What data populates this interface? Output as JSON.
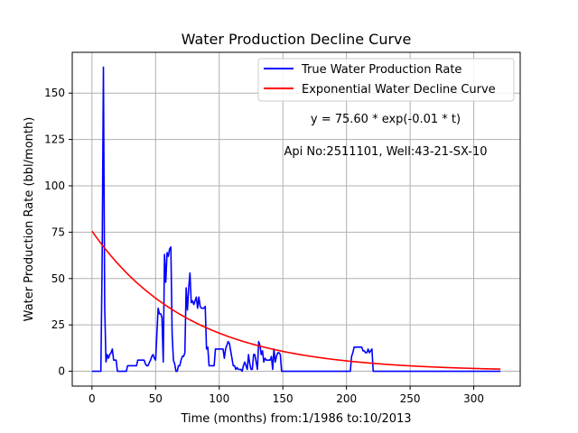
{
  "chart_data": {
    "type": "line",
    "title": "Water Production Decline Curve",
    "xlabel": "Time (months) from:1/1986 to:10/2013",
    "ylabel": "Water Production Rate (bbl/month)",
    "xlim": [
      -15.5,
      336.5
    ],
    "ylim": [
      -8,
      172
    ],
    "xticks": [
      0,
      50,
      100,
      150,
      200,
      250,
      300
    ],
    "yticks": [
      0,
      25,
      50,
      75,
      100,
      125,
      150
    ],
    "grid": true,
    "legend_position": "top-right",
    "annotations": [
      "y = 75.60 * exp(-0.01 * t)",
      "Api No:2511101, Well:43-21-SX-10"
    ],
    "series": [
      {
        "name": "True Water Production Rate",
        "color": "#0000ff",
        "points": [
          [
            0,
            0
          ],
          [
            7,
            0
          ],
          [
            8,
            60
          ],
          [
            9,
            164
          ],
          [
            10,
            35
          ],
          [
            11,
            5
          ],
          [
            12,
            9
          ],
          [
            13,
            7
          ],
          [
            14,
            9
          ],
          [
            15,
            10
          ],
          [
            16,
            12
          ],
          [
            17,
            6
          ],
          [
            18,
            6
          ],
          [
            19,
            6
          ],
          [
            20,
            0
          ],
          [
            27,
            0
          ],
          [
            28,
            3
          ],
          [
            35,
            3
          ],
          [
            36,
            6
          ],
          [
            41,
            6
          ],
          [
            42,
            4
          ],
          [
            43,
            3
          ],
          [
            44,
            3
          ],
          [
            46,
            6
          ],
          [
            47,
            8
          ],
          [
            48,
            9
          ],
          [
            49,
            7
          ],
          [
            50,
            6
          ],
          [
            51,
            20
          ],
          [
            52,
            34
          ],
          [
            53,
            31
          ],
          [
            54,
            31
          ],
          [
            55,
            29
          ],
          [
            56,
            5
          ],
          [
            57,
            63
          ],
          [
            58,
            48
          ],
          [
            59,
            64
          ],
          [
            60,
            62
          ],
          [
            61,
            66
          ],
          [
            62,
            67
          ],
          [
            63,
            20
          ],
          [
            64,
            6
          ],
          [
            65,
            4
          ],
          [
            66,
            0
          ],
          [
            67,
            0
          ],
          [
            68,
            3
          ],
          [
            69,
            3
          ],
          [
            70,
            6
          ],
          [
            71,
            8
          ],
          [
            72,
            8
          ],
          [
            73,
            10
          ],
          [
            74,
            45
          ],
          [
            75,
            33
          ],
          [
            76,
            45
          ],
          [
            77,
            53
          ],
          [
            78,
            37
          ],
          [
            79,
            38
          ],
          [
            80,
            36
          ],
          [
            82,
            40
          ],
          [
            83,
            34
          ],
          [
            84,
            40
          ],
          [
            85,
            35
          ],
          [
            86,
            34
          ],
          [
            88,
            34
          ],
          [
            89,
            35
          ],
          [
            90,
            12
          ],
          [
            91,
            13
          ],
          [
            92,
            3
          ],
          [
            93,
            3
          ],
          [
            94,
            3
          ],
          [
            95,
            3
          ],
          [
            96,
            3
          ],
          [
            97,
            12
          ],
          [
            98,
            12
          ],
          [
            100,
            12
          ],
          [
            103,
            12
          ],
          [
            104,
            7
          ],
          [
            105,
            12
          ],
          [
            107,
            16
          ],
          [
            108,
            15
          ],
          [
            109,
            11
          ],
          [
            111,
            3
          ],
          [
            112,
            3
          ],
          [
            113,
            1
          ],
          [
            114,
            2
          ],
          [
            115,
            1
          ],
          [
            116,
            1
          ],
          [
            117,
            1
          ],
          [
            118,
            0
          ],
          [
            119,
            3
          ],
          [
            120,
            5
          ],
          [
            121,
            3
          ],
          [
            122,
            1
          ],
          [
            123,
            9
          ],
          [
            124,
            4
          ],
          [
            125,
            1
          ],
          [
            126,
            1
          ],
          [
            127,
            9
          ],
          [
            128,
            9
          ],
          [
            129,
            5
          ],
          [
            130,
            1
          ],
          [
            131,
            16
          ],
          [
            132,
            14
          ],
          [
            133,
            9
          ],
          [
            134,
            11
          ],
          [
            135,
            5
          ],
          [
            136,
            7
          ],
          [
            137,
            6
          ],
          [
            138,
            6
          ],
          [
            139,
            6
          ],
          [
            140,
            6
          ],
          [
            141,
            8
          ],
          [
            142,
            1
          ],
          [
            143,
            12
          ],
          [
            144,
            5
          ],
          [
            145,
            8
          ],
          [
            146,
            10
          ],
          [
            147,
            10
          ],
          [
            148,
            9
          ],
          [
            149,
            0
          ],
          [
            150,
            0
          ],
          [
            202,
            0
          ],
          [
            203,
            0
          ],
          [
            204,
            8
          ],
          [
            205,
            10
          ],
          [
            206,
            13
          ],
          [
            212,
            13
          ],
          [
            213,
            11
          ],
          [
            214,
            11
          ],
          [
            215,
            10
          ],
          [
            216,
            10
          ],
          [
            217,
            12
          ],
          [
            218,
            10
          ],
          [
            219,
            11
          ],
          [
            220,
            12
          ],
          [
            221,
            0
          ],
          [
            321,
            0
          ]
        ]
      },
      {
        "name": "Exponential Water Decline Curve",
        "color": "#ff0000",
        "formula": {
          "a": 75.6,
          "b": 0.01302
        },
        "x_range": [
          0,
          321
        ]
      }
    ]
  }
}
